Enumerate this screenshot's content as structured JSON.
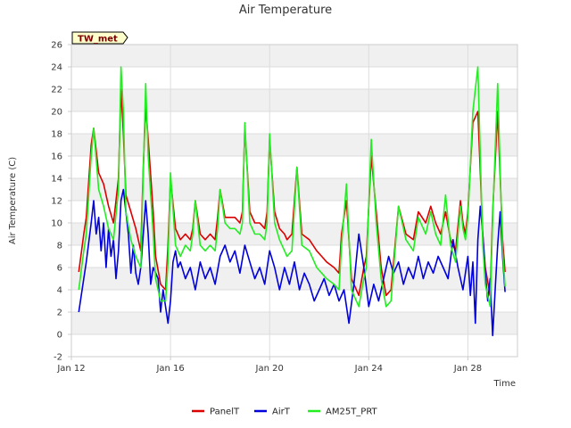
{
  "chart_data": {
    "type": "line",
    "title": "Air Temperature",
    "xlabel": "Time",
    "ylabel": "Air Temperature (C)",
    "station_label": "TW_met",
    "ylim": [
      -2,
      26
    ],
    "y_ticks": [
      -2,
      0,
      2,
      4,
      6,
      8,
      10,
      12,
      14,
      16,
      18,
      20,
      22,
      24,
      26
    ],
    "xlim": [
      12,
      30
    ],
    "x_ticks": [
      {
        "day": 12,
        "label": "Jan 12"
      },
      {
        "day": 16,
        "label": "Jan 16"
      },
      {
        "day": 20,
        "label": "Jan 20"
      },
      {
        "day": 24,
        "label": "Jan 24"
      },
      {
        "day": 28,
        "label": "Jan 28"
      }
    ],
    "grid": true,
    "legend_position": "bottom",
    "x_unit": "day of January",
    "series": [
      {
        "name": "PanelT",
        "color": "#dd0000",
        "x": [
          12.3,
          12.5,
          12.6,
          12.8,
          12.9,
          13.1,
          13.3,
          13.5,
          13.7,
          13.9,
          14.0,
          14.1,
          14.2,
          14.4,
          14.6,
          14.8,
          14.9,
          15.0,
          15.1,
          15.3,
          15.4,
          15.6,
          15.8,
          15.9,
          16.0,
          16.2,
          16.4,
          16.6,
          16.8,
          16.9,
          17.0,
          17.2,
          17.4,
          17.6,
          17.8,
          17.9,
          18.0,
          18.2,
          18.4,
          18.6,
          18.8,
          18.9,
          19.0,
          19.2,
          19.4,
          19.6,
          19.8,
          19.9,
          20.0,
          20.2,
          20.4,
          20.6,
          20.7,
          20.9,
          21.1,
          21.3,
          21.6,
          21.9,
          22.1,
          22.3,
          22.6,
          22.8,
          22.9,
          23.1,
          23.3,
          23.6,
          23.8,
          23.9,
          24.1,
          24.3,
          24.5,
          24.7,
          24.9,
          25.2,
          25.5,
          25.8,
          26.0,
          26.3,
          26.5,
          26.7,
          26.9,
          27.1,
          27.3,
          27.5,
          27.7,
          27.8,
          27.9,
          28.0,
          28.2,
          28.4,
          28.6,
          28.7,
          28.9,
          29.0,
          29.2,
          29.4,
          29.5
        ],
        "y": [
          5.6,
          9.0,
          10.5,
          17.0,
          18.5,
          14.5,
          13.5,
          11.5,
          10.0,
          14.0,
          22.0,
          18.0,
          12.5,
          11.0,
          9.5,
          7.5,
          15.0,
          20.5,
          17.5,
          11.0,
          7.0,
          4.5,
          4.0,
          8.0,
          14.0,
          9.5,
          8.5,
          9.0,
          8.5,
          9.5,
          12.0,
          9.0,
          8.5,
          9.0,
          8.5,
          10.5,
          13.0,
          10.5,
          10.5,
          10.5,
          10.0,
          11.0,
          18.5,
          11.0,
          10.0,
          10.0,
          9.5,
          11.0,
          17.5,
          11.0,
          9.5,
          9.0,
          8.5,
          9.0,
          15.0,
          9.0,
          8.5,
          7.5,
          7.0,
          6.5,
          6.0,
          5.5,
          9.0,
          12.0,
          5.0,
          3.5,
          6.0,
          7.0,
          16.0,
          11.0,
          6.0,
          3.5,
          4.0,
          11.5,
          9.0,
          8.5,
          11.0,
          10.0,
          11.5,
          10.0,
          9.0,
          11.0,
          8.5,
          7.5,
          12.0,
          10.0,
          9.0,
          11.0,
          19.0,
          20.0,
          9.0,
          6.0,
          3.5,
          11.0,
          20.0,
          8.5,
          5.6
        ]
      },
      {
        "name": "AirT",
        "color": "#0000dd",
        "x": [
          12.3,
          12.4,
          12.5,
          12.6,
          12.8,
          12.9,
          13.0,
          13.1,
          13.2,
          13.3,
          13.4,
          13.5,
          13.6,
          13.7,
          13.8,
          13.9,
          14.0,
          14.1,
          14.3,
          14.4,
          14.5,
          14.6,
          14.7,
          14.8,
          14.9,
          15.0,
          15.1,
          15.2,
          15.3,
          15.5,
          15.6,
          15.7,
          15.9,
          16.0,
          16.1,
          16.2,
          16.3,
          16.4,
          16.6,
          16.8,
          17.0,
          17.2,
          17.4,
          17.6,
          17.8,
          18.0,
          18.2,
          18.4,
          18.6,
          18.8,
          19.0,
          19.2,
          19.4,
          19.6,
          19.8,
          20.0,
          20.2,
          20.4,
          20.6,
          20.8,
          21.0,
          21.2,
          21.4,
          21.6,
          21.8,
          22.0,
          22.2,
          22.4,
          22.6,
          22.8,
          23.0,
          23.2,
          23.4,
          23.6,
          23.8,
          24.0,
          24.2,
          24.4,
          24.6,
          24.8,
          25.0,
          25.2,
          25.4,
          25.6,
          25.8,
          26.0,
          26.2,
          26.4,
          26.6,
          26.8,
          27.0,
          27.2,
          27.4,
          27.6,
          27.8,
          28.0,
          28.1,
          28.2,
          28.3,
          28.4,
          28.5,
          28.6,
          28.7,
          28.8,
          28.9,
          29.0,
          29.1,
          29.2,
          29.3,
          29.4,
          29.5
        ],
        "y": [
          2.0,
          3.5,
          5.0,
          6.5,
          10.0,
          12.0,
          9.0,
          10.5,
          7.5,
          10.0,
          6.0,
          9.5,
          7.0,
          8.5,
          5.0,
          7.5,
          12.0,
          13.0,
          9.0,
          5.5,
          8.0,
          5.5,
          4.5,
          6.0,
          9.0,
          12.0,
          9.0,
          4.5,
          6.0,
          5.0,
          2.0,
          4.0,
          1.0,
          3.0,
          6.5,
          7.5,
          6.0,
          6.5,
          5.0,
          6.0,
          4.0,
          6.5,
          5.0,
          6.0,
          4.5,
          7.0,
          8.0,
          6.5,
          7.5,
          5.5,
          8.0,
          6.5,
          5.0,
          6.0,
          4.5,
          7.5,
          6.0,
          4.0,
          6.0,
          4.5,
          6.5,
          4.0,
          5.5,
          4.5,
          3.0,
          4.0,
          5.0,
          3.5,
          4.5,
          3.0,
          4.0,
          1.0,
          4.5,
          9.0,
          6.0,
          2.5,
          4.5,
          3.0,
          5.0,
          7.0,
          5.5,
          6.5,
          4.5,
          6.0,
          5.0,
          7.0,
          5.0,
          6.5,
          5.5,
          7.0,
          6.0,
          5.0,
          8.5,
          6.0,
          4.0,
          7.0,
          3.5,
          6.5,
          1.0,
          8.5,
          11.5,
          9.0,
          5.5,
          3.0,
          5.0,
          -0.1,
          4.0,
          8.0,
          11.0,
          7.0,
          3.8
        ]
      },
      {
        "name": "AM25T_PRT",
        "color": "#22ee22",
        "x": [
          12.3,
          12.5,
          12.6,
          12.8,
          12.9,
          13.1,
          13.3,
          13.5,
          13.7,
          13.9,
          14.0,
          14.1,
          14.2,
          14.4,
          14.6,
          14.8,
          14.9,
          15.0,
          15.1,
          15.3,
          15.4,
          15.6,
          15.8,
          15.9,
          16.0,
          16.2,
          16.4,
          16.6,
          16.8,
          16.9,
          17.0,
          17.2,
          17.4,
          17.6,
          17.8,
          17.9,
          18.0,
          18.2,
          18.4,
          18.6,
          18.8,
          18.9,
          19.0,
          19.2,
          19.4,
          19.6,
          19.8,
          19.9,
          20.0,
          20.2,
          20.4,
          20.6,
          20.7,
          20.9,
          21.1,
          21.3,
          21.6,
          21.9,
          22.1,
          22.3,
          22.6,
          22.8,
          22.9,
          23.1,
          23.3,
          23.6,
          23.8,
          23.9,
          24.1,
          24.3,
          24.5,
          24.7,
          24.9,
          25.2,
          25.5,
          25.8,
          26.0,
          26.3,
          26.5,
          26.7,
          26.9,
          27.1,
          27.3,
          27.5,
          27.7,
          27.8,
          27.9,
          28.0,
          28.2,
          28.4,
          28.6,
          28.7,
          28.9,
          29.0,
          29.2,
          29.4,
          29.5
        ],
        "y": [
          4.0,
          7.5,
          9.0,
          16.0,
          18.5,
          13.0,
          11.5,
          9.5,
          8.5,
          13.0,
          24.0,
          20.0,
          11.0,
          8.5,
          7.0,
          6.0,
          14.5,
          22.5,
          16.0,
          9.0,
          5.0,
          3.0,
          3.0,
          6.5,
          14.5,
          8.0,
          7.0,
          8.0,
          7.5,
          9.0,
          12.0,
          8.0,
          7.5,
          8.0,
          7.5,
          9.5,
          13.0,
          10.0,
          9.5,
          9.5,
          9.0,
          10.0,
          19.0,
          10.0,
          9.0,
          9.0,
          8.5,
          10.0,
          18.0,
          10.0,
          8.5,
          7.5,
          7.0,
          7.5,
          15.0,
          8.0,
          7.5,
          6.0,
          5.5,
          5.0,
          4.5,
          4.0,
          8.0,
          13.5,
          4.0,
          2.5,
          5.0,
          6.0,
          17.5,
          10.0,
          5.0,
          2.5,
          3.0,
          11.5,
          8.5,
          7.5,
          10.5,
          9.0,
          11.0,
          9.0,
          8.0,
          12.5,
          8.0,
          6.5,
          11.5,
          9.5,
          8.5,
          10.5,
          20.0,
          24.0,
          8.0,
          4.5,
          2.5,
          10.5,
          22.5,
          7.5,
          4.3
        ]
      }
    ]
  }
}
